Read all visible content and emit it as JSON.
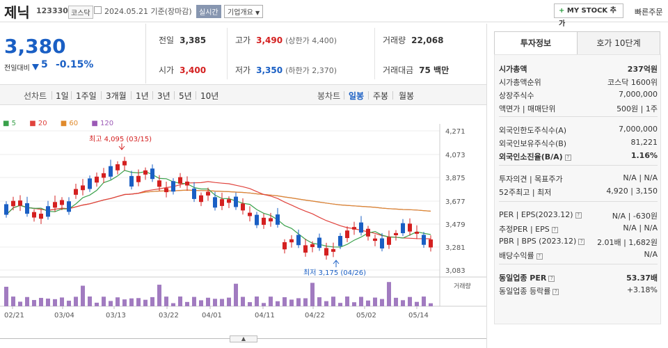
{
  "header": {
    "title": "제닉",
    "code": "123330",
    "market": "코스닥",
    "date_text": "2024.05.21  기준(장마감)",
    "live_label": "실시간",
    "corp_label": "기업개요",
    "mystock_label": "MY STOCK 추가",
    "quick_order_label": "빠른주문"
  },
  "price": {
    "current": "3,380",
    "change_label": "전일대비",
    "change_value": "5",
    "change_pct": "-0.15%"
  },
  "stats": {
    "prev_label": "전일",
    "prev_value": "3,385",
    "high_label": "고가",
    "high_value": "3,490",
    "upper_limit": "(상한가 4,400)",
    "volume_label": "거래량",
    "volume_value": "22,068",
    "open_label": "시가",
    "open_value": "3,400",
    "low_label": "저가",
    "low_value": "3,350",
    "lower_limit": "(하한가 2,370)",
    "amount_label": "거래대금",
    "amount_value": "75 백만"
  },
  "periods": {
    "line_label": "선차트",
    "line_items": [
      "1일",
      "1주일",
      "3개월",
      "1년",
      "3년",
      "5년",
      "10년"
    ],
    "candle_label": "봉차트",
    "candle_items": [
      "일봉",
      "주봉",
      "월봉"
    ],
    "active_candle": "일봉"
  },
  "legend": [
    "5",
    "20",
    "60",
    "120"
  ],
  "chart_data": {
    "type": "candlestick",
    "price_axis_ticks": [
      "4,271",
      "4,073",
      "3,875",
      "3,677",
      "3,479",
      "3,281",
      "3,083"
    ],
    "x_tick_labels": [
      "02/21",
      "03/04",
      "03/13",
      "03/22",
      "04/01",
      "04/11",
      "04/22",
      "05/02",
      "05/14"
    ],
    "annotation_high": "최고 4,095 (03/15)",
    "annotation_low": "최저 3,175 (04/26)",
    "volume_label": "거래량",
    "ylim": [
      3083,
      4271
    ]
  },
  "invest": {
    "tab_active": "투자정보",
    "tab_other": "호가 10단계",
    "market_cap_label": "시가총액",
    "market_cap_value": "237억원",
    "rank_label": "시가총액순위",
    "rank_value": "코스닥 1600위",
    "shares_label": "상장주식수",
    "shares_value": "7,000,000",
    "par_label": "액면가 | 매매단위",
    "par_value": "500원 | 1주",
    "foreign_limit_label": "외국인한도주식수(A)",
    "foreign_limit_value": "7,000,000",
    "foreign_own_label": "외국인보유주식수(B)",
    "foreign_own_value": "81,221",
    "foreign_ratio_label": "외국인소진율(B/A)",
    "foreign_ratio_value": "1.16%",
    "opinion_label": "투자의견 | 목표주가",
    "opinion_value": "N/A | N/A",
    "week52_label": "52주최고 | 최저",
    "week52_value": "4,920 | 3,150",
    "per_label": "PER | EPS(2023.12)",
    "per_value": "N/A | -630원",
    "est_per_label": "추정PER | EPS",
    "est_per_value": "N/A | N/A",
    "pbr_label": "PBR | BPS (2023.12)",
    "pbr_value": "2.01배 | 1,682원",
    "div_label": "배당수익률",
    "div_value": "N/A",
    "sector_per_label": "동일업종 PER",
    "sector_per_value": "53.37배",
    "sector_rate_label": "동일업종 등락률",
    "sector_rate_value": "+3.18%"
  },
  "colors": {
    "up": "#d42020",
    "down": "#1a5fc4",
    "ma5": "#3aa14b",
    "ma20": "#e0423c",
    "ma60": "#e08a2c",
    "ma120": "#9b59b6",
    "volume": "#a17bc0"
  }
}
